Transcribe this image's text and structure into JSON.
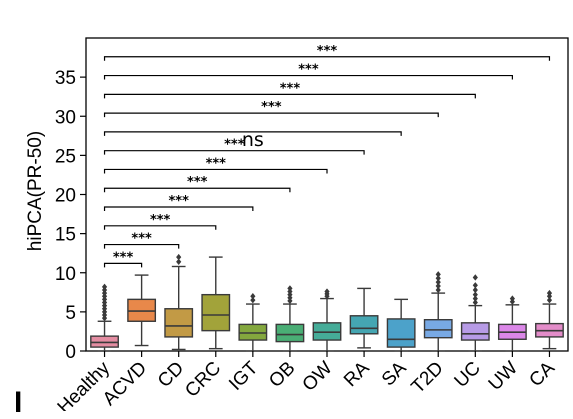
{
  "chart_data": {
    "type": "box",
    "ylabel": "hiPCA(PR-50)",
    "ylim": [
      0,
      40
    ],
    "yticks": [
      0,
      5,
      10,
      15,
      20,
      25,
      30,
      35
    ],
    "ytick_labels": [
      "0",
      "5",
      "10",
      "15",
      "20",
      "25",
      "30",
      "35"
    ],
    "categories": [
      "Healthy",
      "ACVD",
      "CD",
      "CRC",
      "IGT",
      "OB",
      "OW",
      "RA",
      "SA",
      "T2D",
      "UC",
      "UW",
      "CA"
    ],
    "colors": [
      "#e48da2",
      "#e8884a",
      "#c29a45",
      "#a2a33a",
      "#84a83e",
      "#4aae75",
      "#45ac98",
      "#45a6b2",
      "#4ca2ca",
      "#78a9e4",
      "#b79be6",
      "#db87e8",
      "#e38cc9"
    ],
    "boxes": [
      {
        "q1": 0.5,
        "median": 1.1,
        "q3": 1.9,
        "whisker_low": 0.0,
        "whisker_high": 3.8,
        "outliers": [
          4.2,
          4.6,
          5.0,
          5.4,
          5.8,
          6.2,
          6.6,
          7.0,
          7.4,
          7.8,
          8.2
        ]
      },
      {
        "q1": 3.8,
        "median": 5.1,
        "q3": 6.6,
        "whisker_low": 0.7,
        "whisker_high": 9.7,
        "outliers": []
      },
      {
        "q1": 1.8,
        "median": 3.2,
        "q3": 5.4,
        "whisker_low": 0.2,
        "whisker_high": 10.8,
        "outliers": [
          11.4,
          12.0
        ]
      },
      {
        "q1": 2.6,
        "median": 4.6,
        "q3": 7.2,
        "whisker_low": 0.3,
        "whisker_high": 12.0,
        "outliers": []
      },
      {
        "q1": 1.4,
        "median": 2.3,
        "q3": 3.4,
        "whisker_low": 0.0,
        "whisker_high": 6.0,
        "outliers": [
          6.5,
          7.0
        ]
      },
      {
        "q1": 1.2,
        "median": 2.1,
        "q3": 3.4,
        "whisker_low": 0.0,
        "whisker_high": 6.0,
        "outliers": [
          6.4,
          6.8,
          7.2,
          7.6,
          8.0
        ]
      },
      {
        "q1": 1.4,
        "median": 2.4,
        "q3": 3.6,
        "whisker_low": 0.0,
        "whisker_high": 6.7,
        "outliers": [
          7.0,
          7.3,
          7.6
        ]
      },
      {
        "q1": 2.2,
        "median": 2.9,
        "q3": 4.5,
        "whisker_low": 0.4,
        "whisker_high": 8.0,
        "outliers": []
      },
      {
        "q1": 0.5,
        "median": 1.5,
        "q3": 4.1,
        "whisker_low": 0.0,
        "whisker_high": 6.6,
        "outliers": []
      },
      {
        "q1": 1.7,
        "median": 2.7,
        "q3": 4.0,
        "whisker_low": 0.0,
        "whisker_high": 7.4,
        "outliers": [
          7.8,
          8.3,
          8.8,
          9.3,
          9.8
        ]
      },
      {
        "q1": 1.4,
        "median": 2.2,
        "q3": 3.6,
        "whisker_low": 0.0,
        "whisker_high": 5.8,
        "outliers": [
          6.2,
          6.7,
          7.2,
          7.8,
          8.4,
          9.4
        ]
      },
      {
        "q1": 1.5,
        "median": 2.4,
        "q3": 3.4,
        "whisker_low": 0.0,
        "whisker_high": 5.9,
        "outliers": [
          6.3,
          6.7
        ]
      },
      {
        "q1": 1.8,
        "median": 2.6,
        "q3": 3.5,
        "whisker_low": 0.3,
        "whisker_high": 6.0,
        "outliers": [
          6.5,
          7.0,
          7.4
        ]
      }
    ],
    "significance": [
      {
        "from": "Healthy",
        "to": "ACVD",
        "label": "***",
        "y": 11.2
      },
      {
        "from": "Healthy",
        "to": "CD",
        "label": "***",
        "y": 13.6
      },
      {
        "from": "Healthy",
        "to": "CRC",
        "label": "***",
        "y": 16.0
      },
      {
        "from": "Healthy",
        "to": "IGT",
        "label": "***",
        "y": 18.4
      },
      {
        "from": "Healthy",
        "to": "OB",
        "label": "***",
        "y": 20.8
      },
      {
        "from": "Healthy",
        "to": "OW",
        "label": "***",
        "y": 23.2
      },
      {
        "from": "Healthy",
        "to": "RA",
        "label": "***",
        "y": 25.6
      },
      {
        "from": "Healthy",
        "to": "SA",
        "label": "ns",
        "y": 28.0
      },
      {
        "from": "Healthy",
        "to": "T2D",
        "label": "***",
        "y": 30.4
      },
      {
        "from": "Healthy",
        "to": "UC",
        "label": "***",
        "y": 32.8
      },
      {
        "from": "Healthy",
        "to": "UW",
        "label": "***",
        "y": 35.2
      },
      {
        "from": "Healthy",
        "to": "CA",
        "label": "***",
        "y": 37.6
      }
    ]
  },
  "panel_letter": "I"
}
